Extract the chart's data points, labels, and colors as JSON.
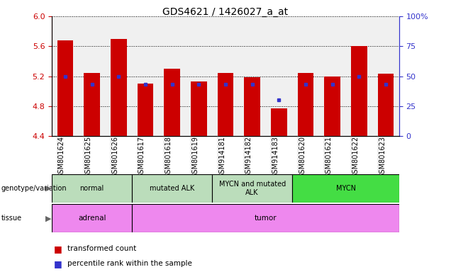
{
  "title": "GDS4621 / 1426027_a_at",
  "samples": [
    "GSM801624",
    "GSM801625",
    "GSM801626",
    "GSM801617",
    "GSM801618",
    "GSM801619",
    "GSM914181",
    "GSM914182",
    "GSM914183",
    "GSM801620",
    "GSM801621",
    "GSM801622",
    "GSM801623"
  ],
  "transformed_count": [
    5.68,
    5.24,
    5.7,
    5.1,
    5.3,
    5.13,
    5.24,
    5.19,
    4.77,
    5.24,
    5.2,
    5.6,
    5.23
  ],
  "percentile_rank": [
    50,
    43,
    50,
    43,
    43,
    43,
    43,
    43,
    30,
    43,
    43,
    50,
    43
  ],
  "ylim_left": [
    4.4,
    6.0
  ],
  "ylim_right": [
    0,
    100
  ],
  "left_ticks": [
    4.4,
    4.8,
    5.2,
    5.6,
    6.0
  ],
  "right_ticks": [
    0,
    25,
    50,
    75,
    100
  ],
  "right_tick_labels": [
    "0",
    "25",
    "50",
    "75",
    "100%"
  ],
  "bar_color": "#cc0000",
  "dot_color": "#3333cc",
  "bar_width": 0.6,
  "genotype_groups": [
    {
      "label": "normal",
      "start": 0,
      "end": 3,
      "color": "#bbddbb"
    },
    {
      "label": "mutated ALK",
      "start": 3,
      "end": 6,
      "color": "#bbddbb"
    },
    {
      "label": "MYCN and mutated\nALK",
      "start": 6,
      "end": 9,
      "color": "#bbddbb"
    },
    {
      "label": "MYCN",
      "start": 9,
      "end": 13,
      "color": "#44dd44"
    }
  ],
  "tissue_groups": [
    {
      "label": "adrenal",
      "start": 0,
      "end": 3,
      "color": "#ee88ee"
    },
    {
      "label": "tumor",
      "start": 3,
      "end": 13,
      "color": "#ee88ee"
    }
  ],
  "legend_items": [
    {
      "label": "transformed count",
      "color": "#cc0000"
    },
    {
      "label": "percentile rank within the sample",
      "color": "#3333cc"
    }
  ],
  "tick_label_color_left": "#cc0000",
  "tick_label_color_right": "#3333cc",
  "plot_bg_color": "#f0f0f0"
}
